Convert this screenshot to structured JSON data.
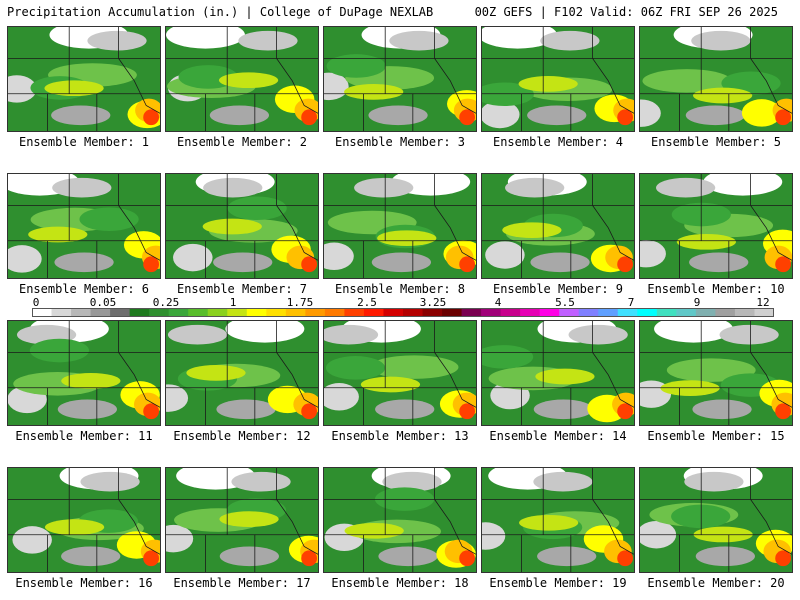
{
  "header": {
    "left": "Precipitation Accumulation (in.) | College of DuPage NEXLAB",
    "right": "00Z GEFS | F102 Valid: 06Z FRI SEP 26 2025"
  },
  "colorbar": {
    "labels": [
      "0",
      "0.05",
      "0.25",
      "1",
      "1.75",
      "2.5",
      "3.25",
      "4",
      "5.5",
      "7",
      "9",
      "12"
    ],
    "colors": [
      "#ffffff",
      "#d8d8d8",
      "#b8b8b8",
      "#989898",
      "#6e6e6e",
      "#1e7a1e",
      "#2f8f2f",
      "#3aa63a",
      "#58bd2a",
      "#8ad11e",
      "#c4e414",
      "#ffff00",
      "#ffe000",
      "#ffc000",
      "#ff9a00",
      "#ff7a00",
      "#ff4000",
      "#ff1a00",
      "#d40000",
      "#b40000",
      "#8a0000",
      "#6a0000",
      "#7a0050",
      "#a00078",
      "#c8008c",
      "#e600b4",
      "#ff00e6",
      "#c060ff",
      "#8080ff",
      "#60a0ff",
      "#40e0ff",
      "#00ffff",
      "#40e0c0",
      "#60c8c8",
      "#80b0b0",
      "#a0a0a0",
      "#b8b8b8",
      "#d0d0d0"
    ]
  },
  "members": [
    {
      "label": "Ensemble Member: 1"
    },
    {
      "label": "Ensemble Member: 2"
    },
    {
      "label": "Ensemble Member: 3"
    },
    {
      "label": "Ensemble Member: 4"
    },
    {
      "label": "Ensemble Member: 5"
    },
    {
      "label": "Ensemble Member: 6"
    },
    {
      "label": "Ensemble Member: 7"
    },
    {
      "label": "Ensemble Member: 8"
    },
    {
      "label": "Ensemble Member: 9"
    },
    {
      "label": "Ensemble Member: 10"
    },
    {
      "label": "Ensemble Member: 11"
    },
    {
      "label": "Ensemble Member: 12"
    },
    {
      "label": "Ensemble Member: 13"
    },
    {
      "label": "Ensemble Member: 14"
    },
    {
      "label": "Ensemble Member: 15"
    },
    {
      "label": "Ensemble Member: 16"
    },
    {
      "label": "Ensemble Member: 17"
    },
    {
      "label": "Ensemble Member: 18"
    },
    {
      "label": "Ensemble Member: 19"
    },
    {
      "label": "Ensemble Member: 20"
    }
  ]
}
